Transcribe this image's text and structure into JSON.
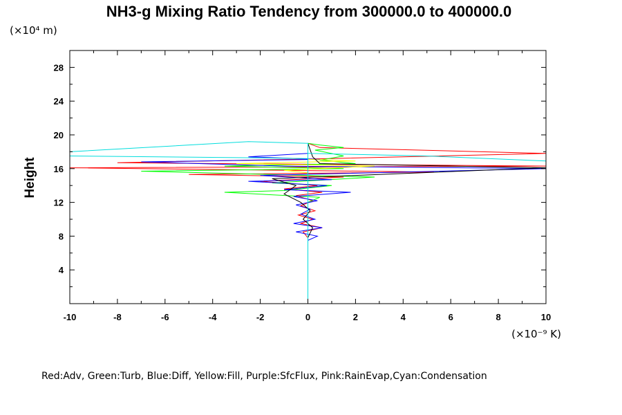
{
  "chart_data": {
    "type": "line",
    "title": "NH3-g Mixing Ratio Tendency from 300000.0 to 400000.0",
    "ylabel": "Height",
    "y_unit": "(×10⁴ m)",
    "x_unit": "(×10⁻⁹ K)",
    "xlim": [
      -10,
      10
    ],
    "ylim": [
      0,
      30
    ],
    "x_ticks": [
      "-10",
      "-8",
      "-6",
      "-4",
      "-2",
      "0",
      "2",
      "4",
      "6",
      "8",
      "10"
    ],
    "y_ticks": [
      "4",
      "8",
      "12",
      "16",
      "20",
      "24",
      "28"
    ],
    "legend_text": "Red:Adv, Green:Turb, Blue:Diff, Yellow:Fill, Purple:SfcFlux, Pink:RainEvap,Cyan:Condensation",
    "series": [
      {
        "color": "#ff0000",
        "points": [
          [
            0,
            7.8
          ],
          [
            -0.2,
            8.5
          ],
          [
            0.6,
            9.0
          ],
          [
            -0.3,
            9.5
          ],
          [
            0.2,
            10.0
          ],
          [
            -0.4,
            10.5
          ],
          [
            0.3,
            11.0
          ],
          [
            -0.3,
            11.6
          ],
          [
            0.2,
            12.2
          ],
          [
            -0.5,
            12.8
          ],
          [
            0.6,
            13.2
          ],
          [
            -1.0,
            13.6
          ],
          [
            0.4,
            14.0
          ],
          [
            -2.0,
            14.5
          ],
          [
            1.5,
            15.0
          ],
          [
            -5.0,
            15.3
          ],
          [
            5.3,
            15.6
          ],
          [
            -10,
            16.1
          ],
          [
            10,
            16.3
          ],
          [
            -8.0,
            16.7
          ],
          [
            1.0,
            17.2
          ],
          [
            10,
            17.8
          ],
          [
            0.5,
            18.5
          ],
          [
            0,
            19.0
          ]
        ]
      },
      {
        "color": "#00ff00",
        "points": [
          [
            0,
            12.0
          ],
          [
            0.5,
            12.6
          ],
          [
            -3.5,
            13.2
          ],
          [
            -1.0,
            13.4
          ],
          [
            1.0,
            14.0
          ],
          [
            -1.5,
            14.3
          ],
          [
            2.8,
            15.0
          ],
          [
            -7.0,
            15.7
          ],
          [
            1.5,
            16.0
          ],
          [
            -3.5,
            16.3
          ],
          [
            2.0,
            16.6
          ],
          [
            0.5,
            17.0
          ],
          [
            1.5,
            17.5
          ],
          [
            0.3,
            18.2
          ],
          [
            1.5,
            18.5
          ],
          [
            0.5,
            18.8
          ],
          [
            0,
            19.0
          ]
        ]
      },
      {
        "color": "#0000ff",
        "points": [
          [
            0,
            7.5
          ],
          [
            0.4,
            8.0
          ],
          [
            -0.5,
            8.5
          ],
          [
            0.6,
            9.0
          ],
          [
            -0.6,
            9.5
          ],
          [
            0.3,
            10.0
          ],
          [
            -0.3,
            10.6
          ],
          [
            0.1,
            11.2
          ],
          [
            -0.5,
            11.7
          ],
          [
            0.4,
            12.2
          ],
          [
            -0.6,
            12.7
          ],
          [
            1.8,
            13.2
          ],
          [
            -1.0,
            13.5
          ],
          [
            0.8,
            14.0
          ],
          [
            -2.5,
            14.5
          ],
          [
            1.0,
            14.7
          ],
          [
            -2.0,
            15.2
          ],
          [
            10,
            16.0
          ],
          [
            -1.0,
            16.3
          ],
          [
            -7.0,
            16.8
          ],
          [
            0.5,
            17.1
          ],
          [
            -2.5,
            17.4
          ],
          [
            0,
            17.8
          ],
          [
            0,
            19.0
          ]
        ]
      },
      {
        "color": "#ffff00",
        "points": [
          [
            0,
            15.5
          ],
          [
            -1.0,
            15.8
          ],
          [
            2.8,
            16.3
          ],
          [
            -3.0,
            16.6
          ],
          [
            2.0,
            16.9
          ],
          [
            0,
            17.1
          ]
        ]
      },
      {
        "color": "#000000",
        "points": [
          [
            0,
            7.8
          ],
          [
            0.2,
            9.0
          ],
          [
            -0.2,
            10.0
          ],
          [
            0.1,
            11.0
          ],
          [
            -0.3,
            12.0
          ],
          [
            -1.0,
            13.0
          ],
          [
            -0.5,
            14.0
          ],
          [
            -1.5,
            14.8
          ],
          [
            10,
            16.1
          ],
          [
            0.5,
            16.6
          ],
          [
            0.2,
            17.4
          ],
          [
            0,
            19.0
          ]
        ]
      },
      {
        "color": "#00dddd",
        "points": [
          [
            0,
            0
          ],
          [
            0,
            19.0
          ],
          [
            -2.5,
            19.2
          ],
          [
            -10,
            18.0
          ]
        ]
      },
      {
        "color": "#00dddd",
        "points": [
          [
            0,
            17.8
          ],
          [
            5,
            17.5
          ],
          [
            10,
            16.9
          ]
        ]
      },
      {
        "color": "#00dddd",
        "points": [
          [
            -10,
            17.5
          ],
          [
            -3,
            17.3
          ],
          [
            0,
            17.2
          ]
        ]
      }
    ]
  }
}
